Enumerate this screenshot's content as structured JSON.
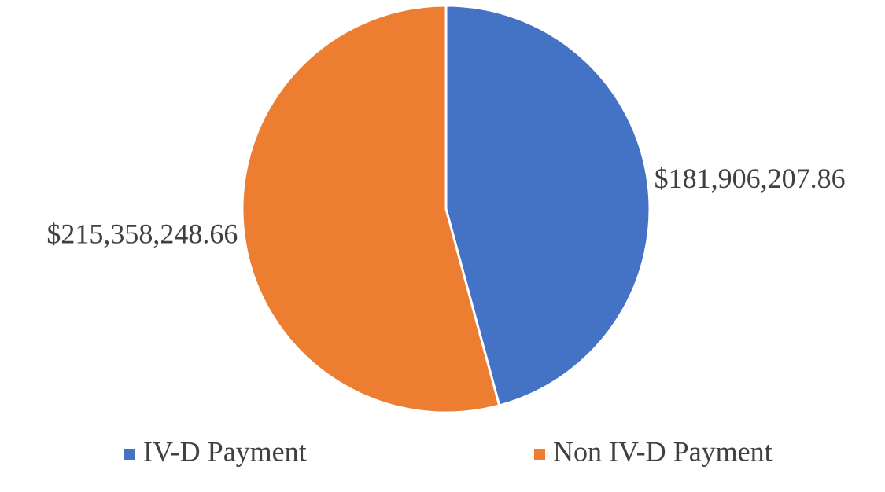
{
  "chart_data": {
    "type": "pie",
    "categories": [
      "IV-D Payment",
      "Non IV-D Payment"
    ],
    "values": [
      181906207.86,
      215358248.66
    ],
    "value_labels": [
      "$181,906,207.86",
      "$215,358,248.66"
    ],
    "colors": [
      "#4472c4",
      "#ed7d31"
    ],
    "legend": "bottom"
  }
}
